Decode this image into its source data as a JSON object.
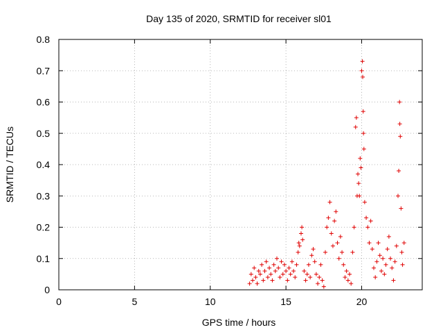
{
  "chart_data": {
    "type": "scatter",
    "title": "Day 135 of 2020, SRMTID for receiver sl01",
    "xlabel": "GPS time / hours",
    "ylabel": "SRMTID / TECUs",
    "xlim": [
      0,
      24
    ],
    "ylim": [
      0,
      0.8
    ],
    "xticks": [
      0,
      5,
      10,
      15,
      20
    ],
    "xtick_labels": [
      "0",
      "5",
      "10",
      "15",
      "20"
    ],
    "yticks": [
      0,
      0.1,
      0.2,
      0.3,
      0.4,
      0.5,
      0.6,
      0.7,
      0.8
    ],
    "ytick_labels": [
      "0",
      "0.1",
      "0.2",
      "0.3",
      "0.4",
      "0.5",
      "0.6",
      "0.7",
      "0.8"
    ],
    "grid": true,
    "marker": "+",
    "color": "#e00000",
    "series": [
      {
        "name": "sl01",
        "points": [
          [
            12.6,
            0.02
          ],
          [
            12.7,
            0.05
          ],
          [
            12.8,
            0.03
          ],
          [
            12.9,
            0.07
          ],
          [
            13.0,
            0.04
          ],
          [
            13.1,
            0.02
          ],
          [
            13.2,
            0.06
          ],
          [
            13.3,
            0.05
          ],
          [
            13.4,
            0.08
          ],
          [
            13.5,
            0.03
          ],
          [
            13.6,
            0.06
          ],
          [
            13.7,
            0.09
          ],
          [
            13.8,
            0.04
          ],
          [
            13.9,
            0.07
          ],
          [
            14.0,
            0.05
          ],
          [
            14.1,
            0.03
          ],
          [
            14.2,
            0.08
          ],
          [
            14.3,
            0.06
          ],
          [
            14.4,
            0.1
          ],
          [
            14.5,
            0.07
          ],
          [
            14.6,
            0.04
          ],
          [
            14.7,
            0.09
          ],
          [
            14.8,
            0.05
          ],
          [
            14.9,
            0.08
          ],
          [
            15.0,
            0.06
          ],
          [
            15.1,
            0.03
          ],
          [
            15.2,
            0.07
          ],
          [
            15.3,
            0.05
          ],
          [
            15.4,
            0.09
          ],
          [
            15.5,
            0.06
          ],
          [
            15.6,
            0.04
          ],
          [
            15.7,
            0.08
          ],
          [
            15.8,
            0.12
          ],
          [
            15.85,
            0.15
          ],
          [
            15.9,
            0.14
          ],
          [
            16.0,
            0.18
          ],
          [
            16.05,
            0.2
          ],
          [
            16.1,
            0.16
          ],
          [
            16.2,
            0.06
          ],
          [
            16.3,
            0.03
          ],
          [
            16.4,
            0.05
          ],
          [
            16.5,
            0.08
          ],
          [
            16.6,
            0.04
          ],
          [
            16.7,
            0.11
          ],
          [
            16.8,
            0.13
          ],
          [
            16.9,
            0.09
          ],
          [
            17.0,
            0.05
          ],
          [
            17.1,
            0.02
          ],
          [
            17.2,
            0.04
          ],
          [
            17.3,
            0.08
          ],
          [
            17.4,
            0.03
          ],
          [
            17.5,
            0.01
          ],
          [
            17.6,
            0.12
          ],
          [
            17.7,
            0.2
          ],
          [
            17.8,
            0.23
          ],
          [
            17.9,
            0.28
          ],
          [
            18.0,
            0.18
          ],
          [
            18.1,
            0.14
          ],
          [
            18.2,
            0.22
          ],
          [
            18.3,
            0.25
          ],
          [
            18.4,
            0.15
          ],
          [
            18.5,
            0.1
          ],
          [
            18.6,
            0.17
          ],
          [
            18.7,
            0.12
          ],
          [
            18.8,
            0.08
          ],
          [
            18.9,
            0.04
          ],
          [
            19.0,
            0.06
          ],
          [
            19.1,
            0.03
          ],
          [
            19.2,
            0.05
          ],
          [
            19.3,
            0.02
          ],
          [
            19.4,
            0.12
          ],
          [
            19.5,
            0.2
          ],
          [
            19.6,
            0.52
          ],
          [
            19.65,
            0.55
          ],
          [
            19.7,
            0.3
          ],
          [
            19.75,
            0.37
          ],
          [
            19.8,
            0.34
          ],
          [
            19.85,
            0.3
          ],
          [
            19.9,
            0.42
          ],
          [
            19.95,
            0.39
          ],
          [
            20.0,
            0.7
          ],
          [
            20.05,
            0.73
          ],
          [
            20.07,
            0.68
          ],
          [
            20.1,
            0.57
          ],
          [
            20.12,
            0.5
          ],
          [
            20.15,
            0.45
          ],
          [
            20.2,
            0.28
          ],
          [
            20.3,
            0.23
          ],
          [
            20.4,
            0.2
          ],
          [
            20.5,
            0.15
          ],
          [
            20.6,
            0.22
          ],
          [
            20.7,
            0.13
          ],
          [
            20.8,
            0.07
          ],
          [
            20.9,
            0.04
          ],
          [
            21.0,
            0.09
          ],
          [
            21.1,
            0.15
          ],
          [
            21.2,
            0.11
          ],
          [
            21.3,
            0.06
          ],
          [
            21.4,
            0.1
          ],
          [
            21.5,
            0.05
          ],
          [
            21.6,
            0.08
          ],
          [
            21.7,
            0.13
          ],
          [
            21.8,
            0.17
          ],
          [
            21.9,
            0.1
          ],
          [
            22.0,
            0.07
          ],
          [
            22.1,
            0.03
          ],
          [
            22.2,
            0.09
          ],
          [
            22.3,
            0.14
          ],
          [
            22.4,
            0.3
          ],
          [
            22.45,
            0.38
          ],
          [
            22.5,
            0.6
          ],
          [
            22.52,
            0.53
          ],
          [
            22.55,
            0.49
          ],
          [
            22.6,
            0.26
          ],
          [
            22.65,
            0.12
          ],
          [
            22.7,
            0.08
          ],
          [
            22.8,
            0.15
          ]
        ]
      }
    ]
  }
}
